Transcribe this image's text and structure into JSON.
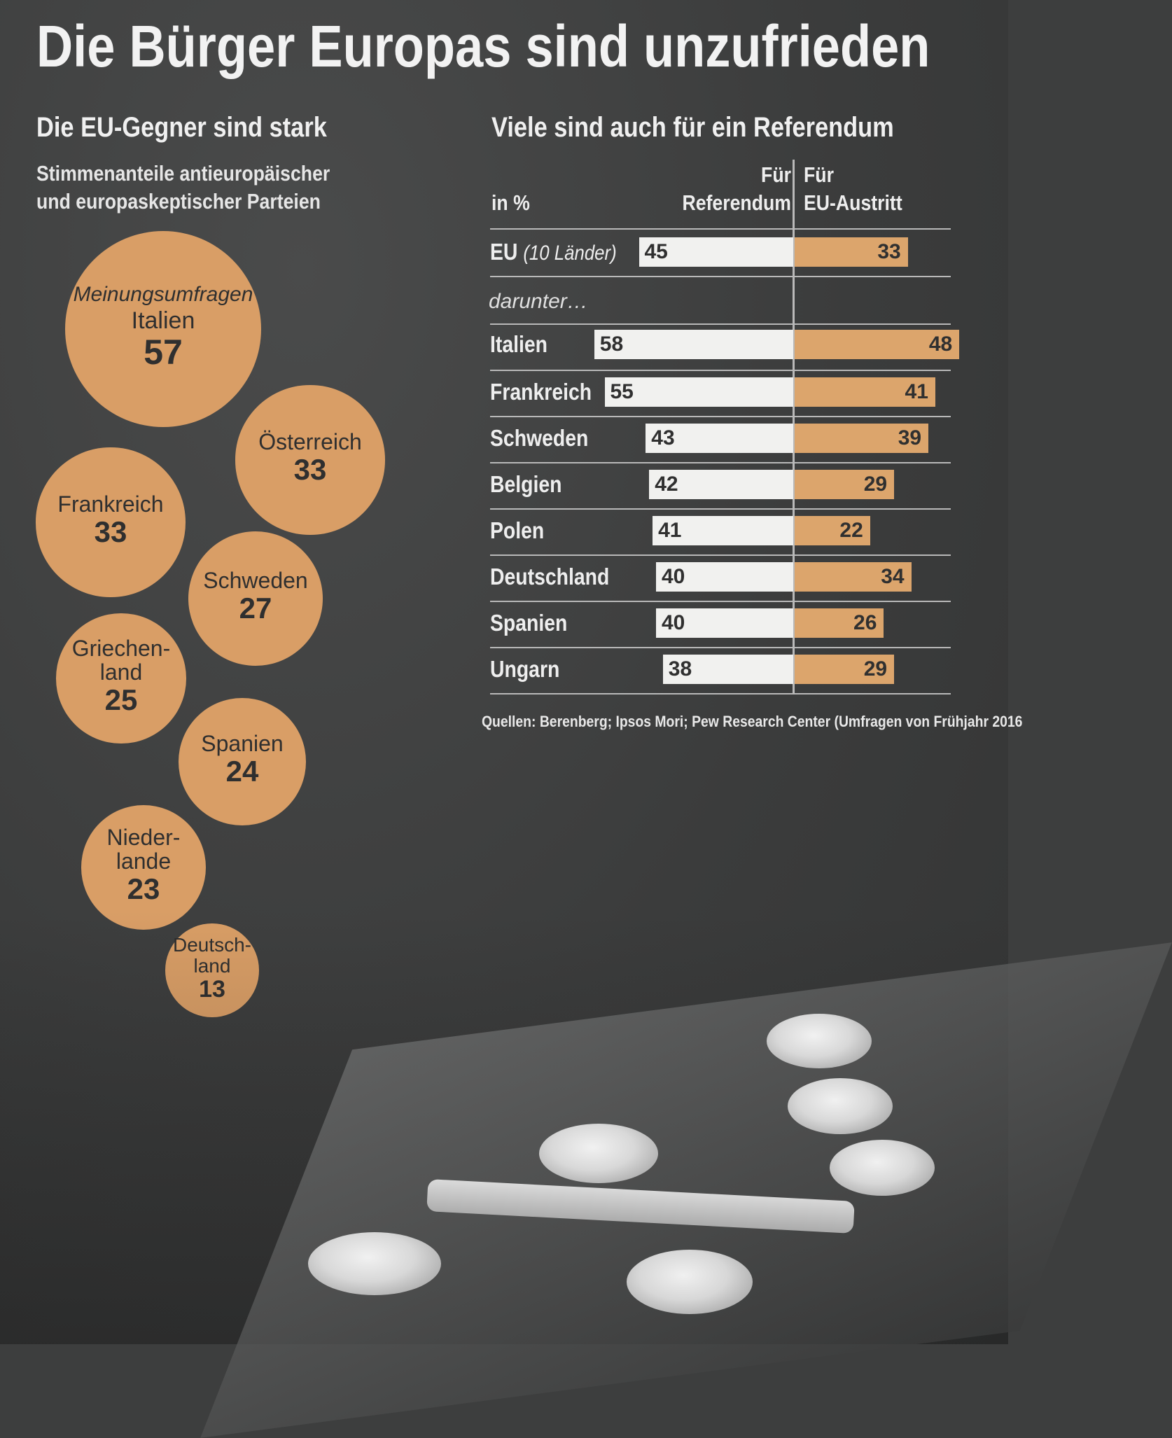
{
  "title": "Die Bürger Europas sind unzufrieden",
  "left_panel": {
    "heading": "Die EU-Gegner sind stark",
    "subtitle_line1": "Stimmenanteile antieuropäischer",
    "subtitle_line2": "und europaskeptischer Parteien",
    "note": "Meinungsumfragen"
  },
  "right_panel": {
    "heading": "Viele sind auch für ein Referendum",
    "unit": "in %",
    "col1_line1": "Für",
    "col1_line2": "Referendum",
    "col2_line1": "Für",
    "col2_line2": "EU-Austritt",
    "eu_label": "EU",
    "eu_label_note": "(10 Länder)",
    "darunter": "darunter…",
    "source": "Quellen: Berenberg; Ipsos Mori; Pew Research Center (Umfragen von Frühjahr 2016"
  },
  "chart_data": [
    {
      "type": "bubble",
      "title": "Die EU-Gegner sind stark",
      "subtitle": "Stimmenanteile antieuropäischer und europaskeptischer Parteien",
      "categories": [
        "Italien",
        "Österreich",
        "Frankreich",
        "Schweden",
        "Griechen-\nland",
        "Spanien",
        "Nieder-\nlande",
        "Deutsch-\nland"
      ],
      "values": [
        57,
        33,
        33,
        27,
        25,
        24,
        23,
        13
      ],
      "color": "#d99e66"
    },
    {
      "type": "bar",
      "title": "Viele sind auch für ein Referendum",
      "unit": "in %",
      "categories": [
        "EU",
        "Italien",
        "Frankreich",
        "Schweden",
        "Belgien",
        "Polen",
        "Deutschland",
        "Spanien",
        "Ungarn"
      ],
      "series": [
        {
          "name": "Für Referendum",
          "values": [
            45,
            58,
            55,
            43,
            42,
            41,
            40,
            40,
            38
          ],
          "color": "#f1f1ef"
        },
        {
          "name": "Für EU-Austritt",
          "values": [
            33,
            48,
            41,
            39,
            29,
            22,
            34,
            26,
            29
          ],
          "color": "#dca56c"
        }
      ],
      "ylim": [
        0,
        60
      ]
    }
  ]
}
